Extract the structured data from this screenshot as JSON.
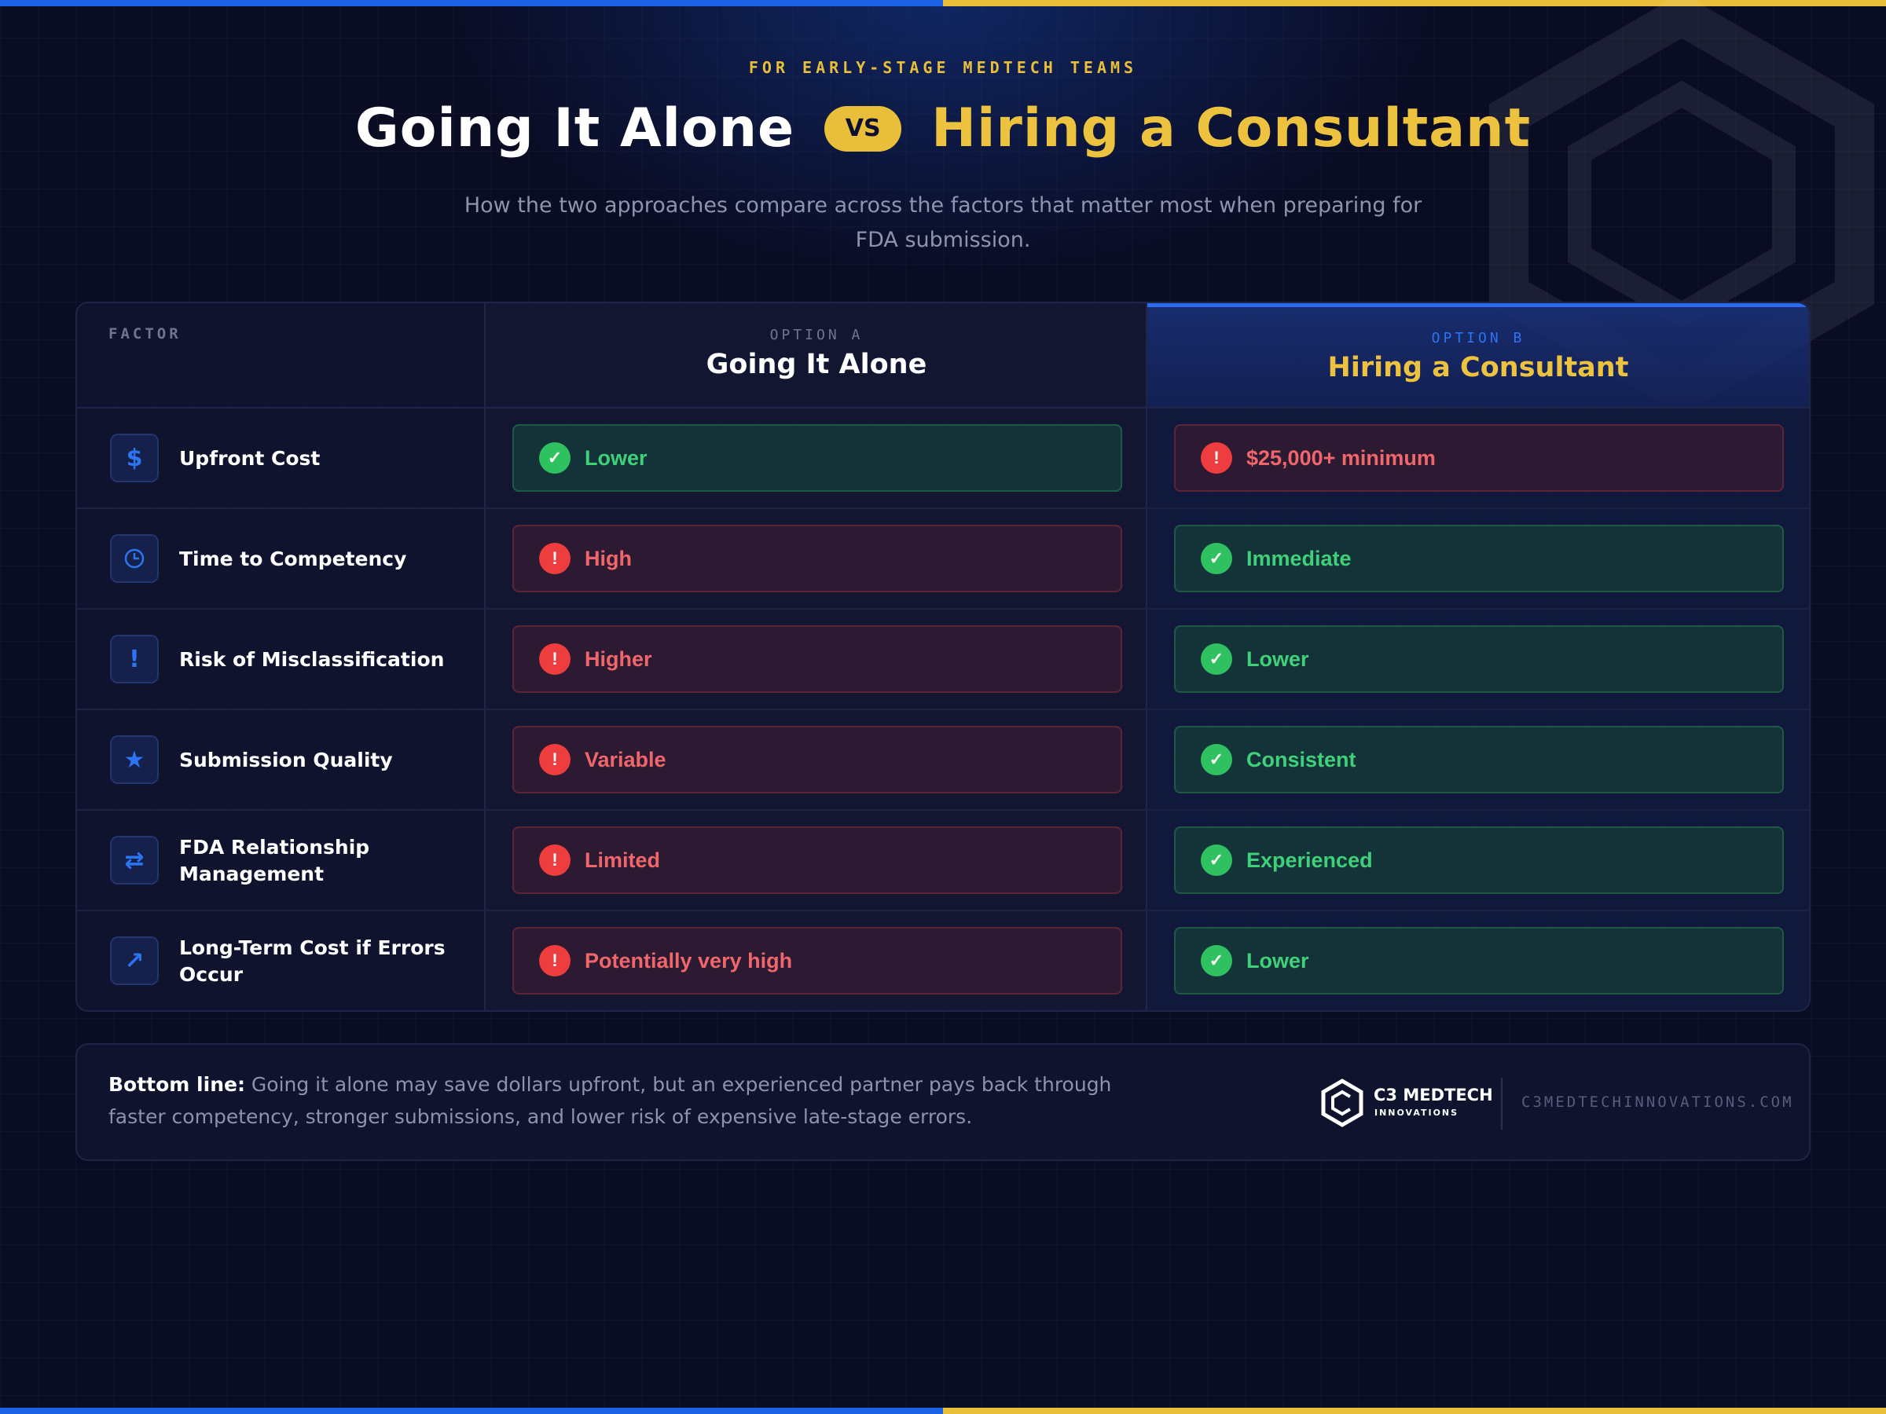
{
  "header": {
    "kicker": "FOR EARLY-STAGE MEDTECH TEAMS",
    "title_a": "Going It Alone",
    "vs": "VS",
    "title_b": "Hiring a Consultant",
    "subtitle": "How the two approaches compare across the factors that matter most when preparing for FDA submission."
  },
  "table": {
    "factor_header": "FACTOR",
    "option_a": {
      "label": "OPTION A",
      "title": "Going It Alone"
    },
    "option_b": {
      "label": "OPTION B",
      "title": "Hiring a Consultant"
    },
    "rows": [
      {
        "factor": "Upfront Cost",
        "icon": "dollar-icon",
        "a": "Lower",
        "a_status": "good",
        "b": "$25,000+ minimum",
        "b_status": "bad"
      },
      {
        "factor": "Time to Competency",
        "icon": "clock-icon",
        "a": "High",
        "a_status": "bad",
        "b": "Immediate",
        "b_status": "good"
      },
      {
        "factor": "Risk of Misclassification",
        "icon": "alert-icon",
        "a": "Higher",
        "a_status": "bad",
        "b": "Lower",
        "b_status": "good"
      },
      {
        "factor": "Submission Quality",
        "icon": "star-icon",
        "a": "Variable",
        "a_status": "bad",
        "b": "Consistent",
        "b_status": "good"
      },
      {
        "factor": "FDA Relationship Management",
        "icon": "exchange-icon",
        "a": "Limited",
        "a_status": "bad",
        "b": "Experienced",
        "b_status": "good"
      },
      {
        "factor": "Long-Term Cost if Errors Occur",
        "icon": "trend-arrow-icon",
        "a": "Potentially very high",
        "a_status": "bad",
        "b": "Lower",
        "b_status": "good"
      }
    ]
  },
  "footer": {
    "bold": "Bottom line:",
    "text": " Going it alone may save dollars upfront, but an experienced partner pays back through faster competency, stronger submissions, and lower risk of expensive late-stage errors.",
    "brand_name": "C3 MEDTECH",
    "brand_sub": "INNOVATIONS",
    "website": "C3MEDTECHINNOVATIONS.COM"
  },
  "colors": {
    "background": "#0a0c24",
    "accent_blue": "#1d63e6",
    "accent_gold": "#e9be3a",
    "good": "#3fd07a",
    "bad": "#f0666b"
  }
}
